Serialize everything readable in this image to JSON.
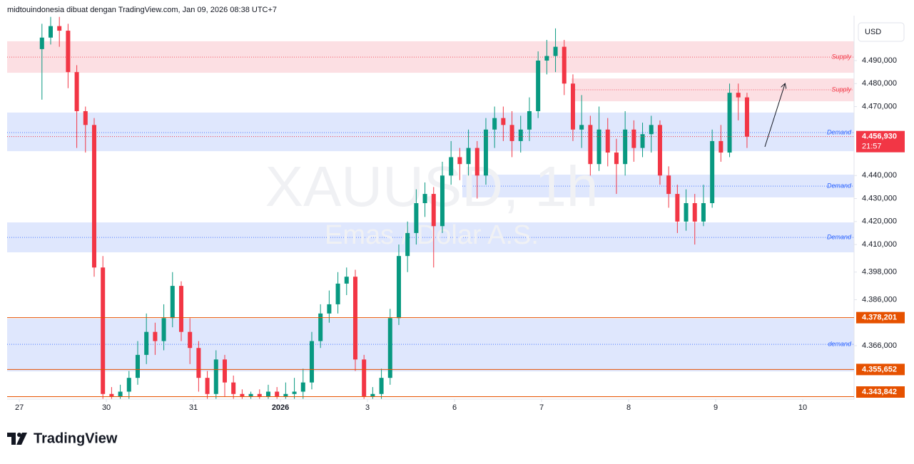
{
  "header": {
    "text": "midtouindonesia dibuat dengan TradingView.com, Jan 09, 2026 08:38 UTC+7",
    "currency": "USD"
  },
  "footer": {
    "logo": "TradingView"
  },
  "chart_data": {
    "type": "candlestick",
    "watermark": [
      "XAUUSD, 1h",
      "Emas / Dolar A.S."
    ],
    "up_color": "#089981",
    "down_color": "#f23645",
    "grid": false,
    "xlim": [
      -0.14,
      9.59
    ],
    "xticks": [
      {
        "value": 0,
        "label": "27"
      },
      {
        "value": 1,
        "label": "30"
      },
      {
        "value": 2,
        "label": "31"
      },
      {
        "value": 3,
        "label": "2026"
      },
      {
        "value": 4,
        "label": "3"
      },
      {
        "value": 5,
        "label": "6"
      },
      {
        "value": 6,
        "label": "7"
      },
      {
        "value": 7,
        "label": "8"
      },
      {
        "value": 8,
        "label": "9"
      },
      {
        "value": 9,
        "label": "10"
      }
    ],
    "ylim": [
      4342.75,
      4509.53
    ],
    "yticks": [
      {
        "value": 4490,
        "label": "4.490,000"
      },
      {
        "value": 4480,
        "label": "4.480,000"
      },
      {
        "value": 4470,
        "label": "4.470,000"
      },
      {
        "value": 4440,
        "label": "4.440,000"
      },
      {
        "value": 4430,
        "label": "4.430,000"
      },
      {
        "value": 4420,
        "label": "4.420,000"
      },
      {
        "value": 4410,
        "label": "4.410,000"
      },
      {
        "value": 4398,
        "label": "4.398,000"
      },
      {
        "value": 4386,
        "label": "4.386,000"
      },
      {
        "value": 4366,
        "label": "4.366,000"
      }
    ],
    "x": [
      0.26,
      0.36,
      0.46,
      0.56,
      0.66,
      0.76,
      0.86,
      0.96,
      1.06,
      1.16,
      1.26,
      1.36,
      1.46,
      1.56,
      1.66,
      1.76,
      1.86,
      1.96,
      2.06,
      2.16,
      2.26,
      2.36,
      2.46,
      2.56,
      2.66,
      2.76,
      2.86,
      2.96,
      3.06,
      3.16,
      3.26,
      3.36,
      3.46,
      3.56,
      3.66,
      3.76,
      3.86,
      3.96,
      4.06,
      4.16,
      4.26,
      4.36,
      4.46,
      4.56,
      4.66,
      4.76,
      4.86,
      4.96,
      5.06,
      5.16,
      5.26,
      5.36,
      5.46,
      5.56,
      5.66,
      5.76,
      5.86,
      5.96,
      6.06,
      6.16,
      6.26,
      6.36,
      6.46,
      6.56,
      6.66,
      6.76,
      6.86,
      6.96,
      7.06,
      7.16,
      7.26,
      7.36,
      7.46,
      7.56,
      7.66,
      7.76,
      7.86,
      7.96,
      8.06,
      8.16,
      8.26,
      8.36
    ],
    "open": [
      4495,
      4500,
      4505,
      4503,
      4485,
      4468,
      4462,
      4400,
      4345,
      4344,
      4346,
      4352,
      4362,
      4372,
      4368,
      4378,
      4392,
      4372,
      4365,
      4352,
      4345,
      4360,
      4350,
      4345,
      4344,
      4345,
      4344,
      4346,
      4344,
      4345,
      4346,
      4350,
      4368,
      4380,
      4384,
      4393,
      4396,
      4360,
      4344,
      4345,
      4352,
      4378,
      4405,
      4415,
      4428,
      4432,
      4418,
      4440,
      4448,
      4445,
      4452,
      4440,
      4460,
      4465,
      4462,
      4455,
      4460,
      4468,
      4490,
      4492,
      4496,
      4480,
      4460,
      4462,
      4445,
      4460,
      4450,
      4445,
      4460,
      4452,
      4458,
      4462,
      4440,
      4432,
      4420,
      4428,
      4420,
      4428,
      4455,
      4450,
      4476,
      4474
    ],
    "high": [
      4506,
      4509,
      4509,
      4506,
      4488,
      4470,
      4465,
      4405,
      4348,
      4349,
      4355,
      4368,
      4380,
      4376,
      4384,
      4398,
      4394,
      4378,
      4368,
      4355,
      4364,
      4362,
      4353,
      4347,
      4346,
      4347,
      4349,
      4348,
      4350,
      4352,
      4356,
      4372,
      4384,
      4390,
      4398,
      4400,
      4399,
      4362,
      4348,
      4356,
      4382,
      4410,
      4420,
      4434,
      4437,
      4435,
      4446,
      4455,
      4452,
      4460,
      4455,
      4465,
      4470,
      4470,
      4468,
      4466,
      4474,
      4494,
      4499,
      4504,
      4499,
      4484,
      4475,
      4466,
      4470,
      4465,
      4456,
      4468,
      4464,
      4463,
      4466,
      4464,
      4444,
      4436,
      4434,
      4432,
      4436,
      4460,
      4462,
      4480,
      4480,
      4476
    ],
    "low": [
      4473,
      4497,
      4496,
      4478,
      4452,
      4450,
      4396,
      4341,
      4341,
      4341,
      4342,
      4349,
      4358,
      4362,
      4364,
      4374,
      4368,
      4358,
      4346,
      4341,
      4342,
      4344,
      4341,
      4341,
      4341,
      4341,
      4341,
      4341,
      4341,
      4341,
      4342,
      4347,
      4365,
      4376,
      4380,
      4388,
      4355,
      4341,
      4341,
      4342,
      4349,
      4375,
      4398,
      4410,
      4422,
      4400,
      4415,
      4436,
      4438,
      4440,
      4430,
      4436,
      4452,
      4455,
      4448,
      4450,
      4455,
      4465,
      4484,
      4485,
      4475,
      4455,
      4452,
      4440,
      4442,
      4444,
      4432,
      4440,
      4446,
      4448,
      4450,
      4436,
      4426,
      4415,
      4416,
      4410,
      4418,
      4426,
      4446,
      4448,
      4464,
      4452
    ],
    "close": [
      4500,
      4505,
      4503,
      4485,
      4468,
      4462,
      4400,
      4345,
      4344,
      4346,
      4352,
      4362,
      4372,
      4368,
      4378,
      4392,
      4372,
      4365,
      4352,
      4345,
      4360,
      4350,
      4345,
      4344,
      4345,
      4344,
      4346,
      4344,
      4345,
      4346,
      4350,
      4368,
      4380,
      4384,
      4393,
      4396,
      4360,
      4344,
      4345,
      4352,
      4378,
      4405,
      4415,
      4428,
      4432,
      4418,
      4440,
      4448,
      4445,
      4452,
      4440,
      4460,
      4465,
      4462,
      4455,
      4460,
      4468,
      4490,
      4492,
      4496,
      4480,
      4460,
      4462,
      4445,
      4460,
      4450,
      4445,
      4460,
      4452,
      4458,
      4462,
      4440,
      4432,
      4420,
      4428,
      4420,
      4428,
      4455,
      4450,
      4476,
      4474,
      4456.93
    ],
    "zones": [
      {
        "label": "Supply",
        "top": 4498.4,
        "bottom": 4484.7,
        "mid": 4491.5,
        "start": -0.14,
        "fill": "#fcdfe3",
        "color": "#f23645"
      },
      {
        "label": "Supply",
        "top": 4482.2,
        "bottom": 4472.3,
        "mid": 4477.3,
        "start": 6.34,
        "fill": "#fcdfe3",
        "color": "#f23645"
      },
      {
        "label": "Demand",
        "top": 4467.4,
        "bottom": 4450.6,
        "mid": 4458.7,
        "start": -0.14,
        "fill": "#dfe7fd",
        "color": "#2962ff"
      },
      {
        "label": "Demand",
        "top": 4440.4,
        "bottom": 4430.5,
        "mid": 4435.4,
        "start": 5.09,
        "fill": "#dfe7fd",
        "color": "#2962ff"
      },
      {
        "label": "Demand",
        "top": 4419.6,
        "bottom": 4406.6,
        "mid": 4413.1,
        "start": -0.14,
        "fill": "#dfe7fd",
        "color": "#2962ff"
      },
      {
        "label": "demand",
        "top": 4377.8,
        "bottom": 4354.8,
        "mid": 4366.6,
        "start": -0.14,
        "fill": "#dfe7fd",
        "color": "#2962ff"
      }
    ],
    "levels": [
      {
        "value": 4378.201,
        "label": "4.378,201",
        "color": "#e65100"
      },
      {
        "value": 4355.652,
        "label": "4.355,652",
        "color": "#e65100"
      },
      {
        "value": 4343.842,
        "label": "4.343,842",
        "color": "#e65100"
      }
    ],
    "last_price": {
      "value": 4456.93,
      "label": "4.456,930",
      "countdown": "21:57",
      "color": "#f23645"
    }
  }
}
